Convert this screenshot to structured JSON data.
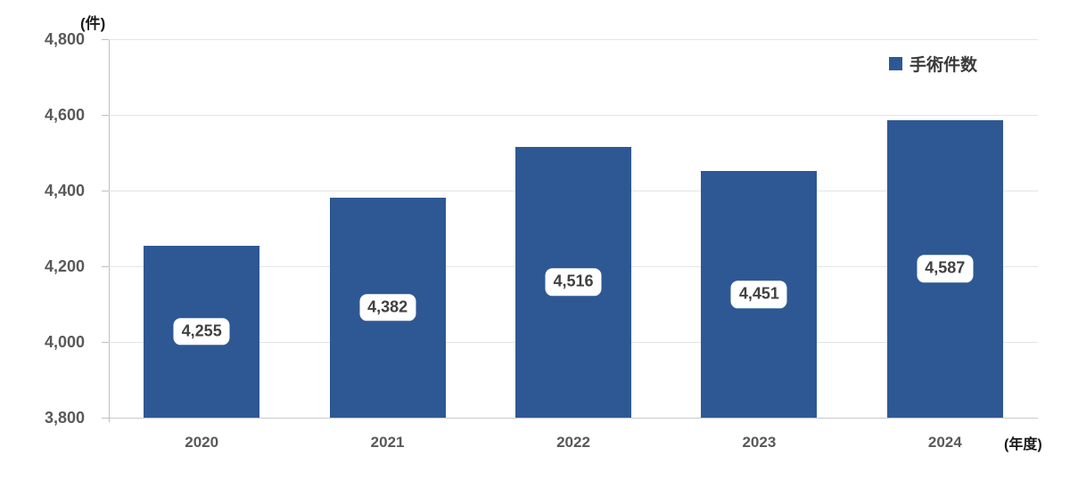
{
  "chart_data": {
    "type": "bar",
    "title": "",
    "series_name": "手術件数",
    "y_unit_label": "(件)",
    "x_unit_label": "(年度)",
    "categories": [
      "2020",
      "2021",
      "2022",
      "2023",
      "2024"
    ],
    "values": [
      4255,
      4382,
      4516,
      4451,
      4587
    ],
    "value_labels": [
      "4,255",
      "4,382",
      "4,516",
      "4,451",
      "4,587"
    ],
    "ylim": [
      3800,
      4800
    ],
    "ytick_interval": 200,
    "yticks": [
      "3,800",
      "4,000",
      "4,200",
      "4,400",
      "4,600",
      "4,800"
    ],
    "grid": true,
    "legend_position": "top-right",
    "colors": {
      "bar": "#2e5894",
      "tick_label": "#595959",
      "data_label_text": "#404040",
      "unit_label": "#1a1a1a",
      "gridline": "#e4e4e4",
      "axis_line": "#bfbfbf",
      "background": "#ffffff"
    }
  }
}
